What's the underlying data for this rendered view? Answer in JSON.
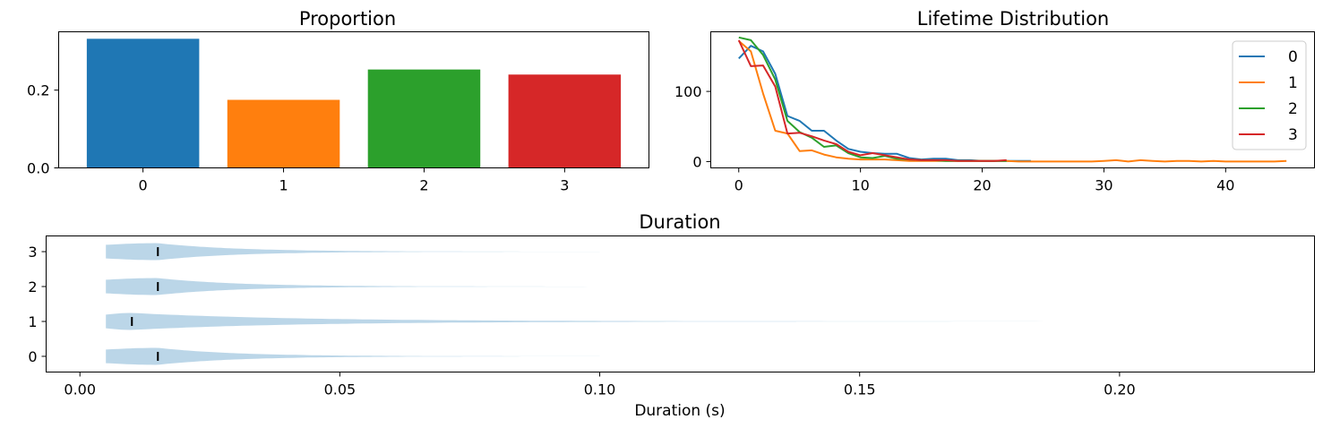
{
  "chart_data": [
    {
      "type": "bar",
      "title": "Proportion",
      "categories": [
        "0",
        "1",
        "2",
        "3"
      ],
      "values": [
        0.332,
        0.175,
        0.253,
        0.24
      ],
      "colors": [
        "#1f77b4",
        "#ff7f0e",
        "#2ca02c",
        "#d62728"
      ],
      "ylim": [
        0,
        0.35
      ],
      "yticks": [
        0.0,
        0.2
      ],
      "ytick_labels": [
        "0.0",
        "0.2"
      ]
    },
    {
      "type": "line",
      "title": "Lifetime Distribution",
      "xlim": [
        -2.3,
        47.3
      ],
      "ylim": [
        -9,
        185
      ],
      "xticks": [
        0,
        10,
        20,
        30,
        40
      ],
      "yticks": [
        0,
        100
      ],
      "legend_position": "top-right",
      "series": [
        {
          "name": "0",
          "color": "#1f77b4",
          "x": [
            0,
            1,
            2,
            3,
            4,
            5,
            6,
            7,
            8,
            9,
            10,
            11,
            12,
            13,
            14,
            15,
            16,
            17,
            18,
            19,
            20,
            21,
            22,
            23,
            24
          ],
          "y": [
            147,
            165,
            157,
            125,
            65,
            58,
            44,
            44,
            30,
            18,
            14,
            12,
            11,
            11,
            5,
            3,
            4,
            4,
            2,
            2,
            1,
            1,
            1,
            1,
            1
          ]
        },
        {
          "name": "1",
          "color": "#ff7f0e",
          "x": [
            0,
            1,
            2,
            3,
            4,
            5,
            6,
            7,
            8,
            9,
            10,
            11,
            12,
            13,
            14,
            15,
            16,
            17,
            18,
            19,
            20,
            21,
            22,
            23,
            24,
            25,
            26,
            27,
            28,
            29,
            30,
            31,
            32,
            33,
            34,
            35,
            36,
            37,
            38,
            39,
            40,
            41,
            42,
            43,
            44,
            45
          ],
          "y": [
            172,
            157,
            97,
            44,
            40,
            15,
            16,
            10,
            6,
            4,
            3,
            3,
            3,
            2,
            1,
            1,
            1,
            1,
            1,
            1,
            1,
            1,
            1,
            0,
            0,
            0,
            0,
            0,
            0,
            0,
            1,
            2,
            0,
            2,
            1,
            0,
            1,
            1,
            0,
            1,
            0,
            0,
            0,
            0,
            0,
            1
          ]
        },
        {
          "name": "2",
          "color": "#2ca02c",
          "x": [
            0,
            1,
            2,
            3,
            4,
            5,
            6,
            7,
            8,
            9,
            10,
            11,
            12,
            13,
            14,
            15,
            16,
            17,
            18,
            19,
            20,
            21,
            22
          ],
          "y": [
            177,
            173,
            152,
            117,
            58,
            42,
            34,
            21,
            23,
            12,
            6,
            5,
            8,
            4,
            3,
            2,
            2,
            1,
            1,
            1,
            1,
            1,
            1
          ]
        },
        {
          "name": "3",
          "color": "#d62728",
          "x": [
            0,
            1,
            2,
            3,
            4,
            5,
            6,
            7,
            8,
            9,
            10,
            11,
            12,
            13,
            14,
            15,
            16,
            17,
            18,
            19,
            20,
            21,
            22
          ],
          "y": [
            173,
            136,
            137,
            107,
            40,
            41,
            36,
            30,
            25,
            14,
            9,
            12,
            9,
            6,
            3,
            2,
            2,
            2,
            1,
            1,
            1,
            1,
            2
          ]
        }
      ]
    },
    {
      "type": "violin",
      "title": "Duration",
      "xlabel": "Duration (s)",
      "xlim": [
        -0.0065,
        0.2375
      ],
      "ylim": [
        -0.45,
        3.45
      ],
      "xticks": [
        0.0,
        0.05,
        0.1,
        0.15,
        0.2
      ],
      "xtick_labels": [
        "0.00",
        "0.05",
        "0.10",
        "0.15",
        "0.20"
      ],
      "categories": [
        "0",
        "1",
        "2",
        "3"
      ],
      "color": "#1f77b4",
      "medians": [
        0.015,
        0.01,
        0.015,
        0.015
      ],
      "min_values": [
        0.005,
        0.005,
        0.005,
        0.005
      ],
      "max_values": [
        0.1,
        0.19,
        0.1,
        0.1
      ]
    }
  ]
}
